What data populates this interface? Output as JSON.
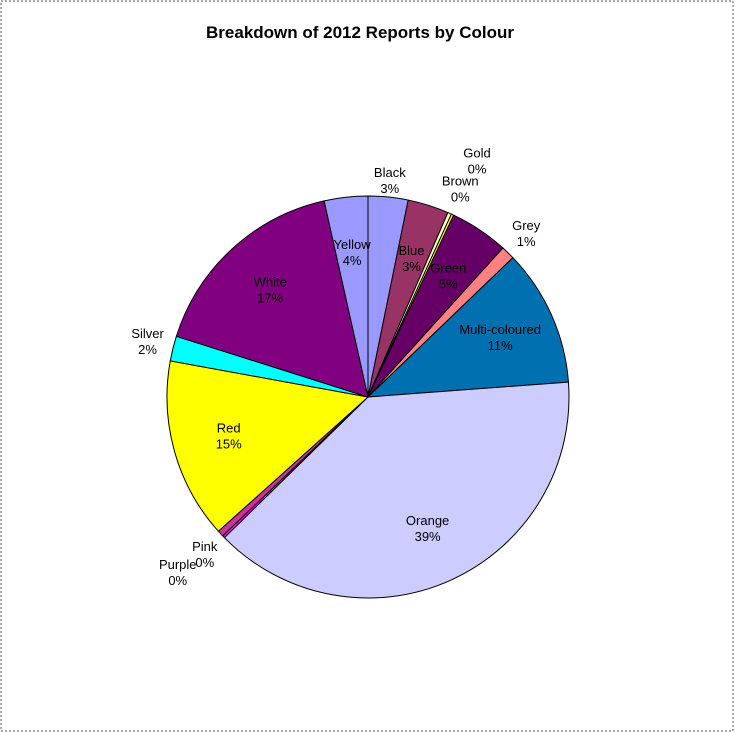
{
  "chart_data": {
    "type": "pie",
    "title": "Breakdown of 2012 Reports by Colour",
    "categories": [
      "Black",
      "Blue",
      "Brown",
      "Gold",
      "Green",
      "Grey",
      "Multi-coloured",
      "Orange",
      "Pink",
      "Purple",
      "Red",
      "Silver",
      "White",
      "Yellow"
    ],
    "values": [
      3.2,
      3.3,
      0.3,
      0.2,
      4.7,
      1.1,
      11.0,
      38.8,
      0.2,
      0.5,
      14.5,
      2.0,
      16.6,
      3.5
    ],
    "value_labels": [
      "3%",
      "3%",
      "0%",
      "0%",
      "5%",
      "1%",
      "11%",
      "39%",
      "0%",
      "0%",
      "15%",
      "2%",
      "17%",
      "4%"
    ],
    "colors": [
      "#9999ff",
      "#993366",
      "#ffffcc",
      "#ffff00",
      "#660066",
      "#ff8080",
      "#0070b0",
      "#ccccff",
      "#ff00ff",
      "#cc3399",
      "#ffff00",
      "#00ffff",
      "#800080",
      "#9999ff"
    ]
  }
}
